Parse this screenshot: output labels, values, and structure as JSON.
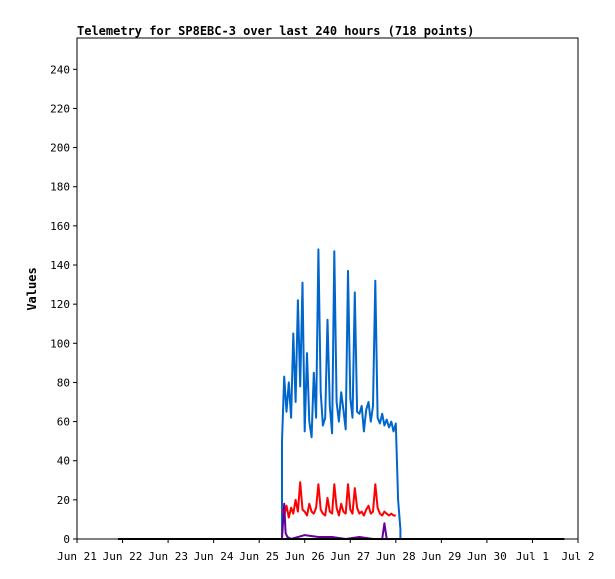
{
  "chart_data": {
    "type": "line",
    "title": "Telemetry for SP8EBC-3 over last 240 hours (718 points)",
    "xlabel": "",
    "ylabel": "Values",
    "ylim": [
      0,
      256
    ],
    "yticks": [
      0,
      20,
      40,
      60,
      80,
      100,
      120,
      140,
      160,
      180,
      200,
      220,
      240
    ],
    "xlim_days": [
      0,
      11
    ],
    "xticks": [
      "Jun 21",
      "Jun 22",
      "Jun 23",
      "Jun 24",
      "Jun 25",
      "Jun 26",
      "Jun 27",
      "Jun 28",
      "Jun 29",
      "Jun 30",
      "Jul 1",
      "Jul 2"
    ],
    "grid": false,
    "colors": {
      "blue": "#0066cc",
      "red": "#ff0000",
      "purple": "#660099",
      "black": "#000000"
    },
    "series": [
      {
        "color": "blue",
        "x": [
          0.9,
          4.5,
          4.5,
          4.55,
          4.6,
          4.65,
          4.7,
          4.75,
          4.8,
          4.85,
          4.9,
          4.95,
          5.0,
          5.05,
          5.1,
          5.15,
          5.2,
          5.25,
          5.3,
          5.35,
          5.4,
          5.45,
          5.5,
          5.55,
          5.6,
          5.65,
          5.7,
          5.75,
          5.8,
          5.85,
          5.9,
          5.95,
          6.0,
          6.05,
          6.1,
          6.15,
          6.2,
          6.25,
          6.3,
          6.35,
          6.4,
          6.45,
          6.5,
          6.55,
          6.6,
          6.65,
          6.7,
          6.75,
          6.8,
          6.85,
          6.9,
          6.95,
          7.0,
          7.05,
          7.1,
          7.1,
          10.7
        ],
        "y": [
          0,
          0,
          50,
          83,
          65,
          80,
          62,
          105,
          70,
          122,
          78,
          131,
          55,
          95,
          60,
          52,
          85,
          62,
          148,
          75,
          58,
          62,
          112,
          68,
          54,
          147,
          70,
          60,
          75,
          66,
          56,
          137,
          72,
          62,
          126,
          65,
          64,
          68,
          55,
          66,
          70,
          60,
          68,
          132,
          62,
          59,
          64,
          58,
          61,
          57,
          60,
          55,
          59,
          20,
          5,
          0,
          0
        ]
      },
      {
        "color": "red",
        "x": [
          4.5,
          4.55,
          4.6,
          4.65,
          4.7,
          4.75,
          4.8,
          4.85,
          4.9,
          4.95,
          5.0,
          5.05,
          5.1,
          5.15,
          5.2,
          5.25,
          5.3,
          5.35,
          5.4,
          5.45,
          5.5,
          5.55,
          5.6,
          5.65,
          5.7,
          5.75,
          5.8,
          5.85,
          5.9,
          5.95,
          6.0,
          6.05,
          6.1,
          6.15,
          6.2,
          6.25,
          6.3,
          6.35,
          6.4,
          6.45,
          6.5,
          6.55,
          6.6,
          6.65,
          6.7,
          6.75,
          6.8,
          6.85,
          6.9,
          6.95,
          7.0
        ],
        "y": [
          15,
          12,
          17,
          11,
          16,
          13,
          20,
          14,
          29,
          15,
          14,
          12,
          18,
          14,
          13,
          16,
          28,
          15,
          13,
          12,
          21,
          14,
          13,
          28,
          16,
          12,
          18,
          14,
          13,
          28,
          15,
          13,
          26,
          16,
          13,
          14,
          12,
          15,
          17,
          13,
          14,
          28,
          16,
          13,
          12,
          14,
          13,
          12,
          13,
          12,
          12
        ]
      },
      {
        "color": "purple",
        "x": [
          4.5,
          4.55,
          4.58,
          4.62,
          4.7,
          5.0,
          5.3,
          5.6,
          5.9,
          6.2,
          6.5,
          6.7,
          6.75,
          6.8,
          7.0
        ],
        "y": [
          0,
          18,
          3,
          1,
          0,
          2,
          1,
          1,
          0,
          1,
          0,
          0,
          8,
          0,
          0
        ]
      },
      {
        "color": "black",
        "x": [
          0.9,
          10.7
        ],
        "y": [
          0,
          0
        ]
      }
    ]
  }
}
